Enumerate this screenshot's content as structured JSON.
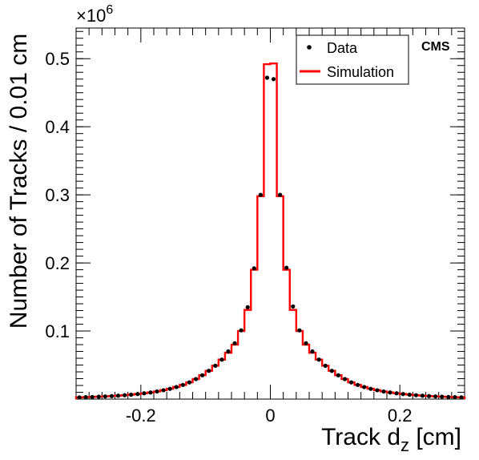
{
  "chart_data": {
    "type": "line",
    "xlabel_main": "Track d",
    "xlabel_sub": "z",
    "xlabel_unit": " [cm]",
    "ylabel": "Number of Tracks / 0.01 cm",
    "y_multiplier_base": "×10",
    "y_multiplier_exp": "6",
    "xlim": [
      -0.3,
      0.3
    ],
    "ylim": [
      0,
      0.545
    ],
    "x_ticks": [
      -0.2,
      0,
      0.2
    ],
    "x_tick_labels": [
      "-0.2",
      "0",
      "0.2"
    ],
    "y_ticks": [
      0.1,
      0.2,
      0.3,
      0.4,
      0.5
    ],
    "y_tick_labels": [
      "0.1",
      "0.2",
      "0.3",
      "0.4",
      "0.5"
    ],
    "legend_position": "top-right",
    "annotation": "CMS",
    "colors": {
      "data": "#000000",
      "simulation": "#ff0000"
    },
    "series": [
      {
        "name": "Data",
        "kind": "points",
        "x": [
          -0.295,
          -0.285,
          -0.275,
          -0.265,
          -0.255,
          -0.245,
          -0.235,
          -0.225,
          -0.215,
          -0.205,
          -0.195,
          -0.185,
          -0.175,
          -0.165,
          -0.155,
          -0.145,
          -0.135,
          -0.125,
          -0.115,
          -0.105,
          -0.095,
          -0.085,
          -0.075,
          -0.065,
          -0.055,
          -0.045,
          -0.035,
          -0.025,
          -0.015,
          -0.005,
          0.005,
          0.015,
          0.025,
          0.035,
          0.045,
          0.055,
          0.065,
          0.075,
          0.085,
          0.095,
          0.105,
          0.115,
          0.125,
          0.135,
          0.145,
          0.155,
          0.165,
          0.175,
          0.185,
          0.195,
          0.205,
          0.215,
          0.225,
          0.235,
          0.245,
          0.255,
          0.265,
          0.275,
          0.285,
          0.295
        ],
        "y": [
          0.0025,
          0.0028,
          0.0031,
          0.0035,
          0.0039,
          0.0044,
          0.005,
          0.0057,
          0.0065,
          0.0074,
          0.0085,
          0.0097,
          0.0112,
          0.013,
          0.0151,
          0.0177,
          0.0208,
          0.0246,
          0.0294,
          0.035,
          0.0415,
          0.049,
          0.058,
          0.07,
          0.082,
          0.101,
          0.135,
          0.192,
          0.3,
          0.472,
          0.47,
          0.3,
          0.193,
          0.136,
          0.101,
          0.082,
          0.07,
          0.058,
          0.049,
          0.0415,
          0.035,
          0.0294,
          0.0246,
          0.0208,
          0.0177,
          0.0151,
          0.013,
          0.0112,
          0.0097,
          0.0085,
          0.0074,
          0.0065,
          0.0057,
          0.005,
          0.0044,
          0.0039,
          0.0035,
          0.0031,
          0.0028,
          0.0025
        ]
      },
      {
        "name": "Simulation",
        "kind": "histogram",
        "bin_edges": [
          -0.3,
          -0.29,
          -0.28,
          -0.27,
          -0.26,
          -0.25,
          -0.24,
          -0.23,
          -0.22,
          -0.21,
          -0.2,
          -0.19,
          -0.18,
          -0.17,
          -0.16,
          -0.15,
          -0.14,
          -0.13,
          -0.12,
          -0.11,
          -0.1,
          -0.09,
          -0.08,
          -0.07,
          -0.06,
          -0.05,
          -0.04,
          -0.03,
          -0.02,
          -0.01,
          0,
          0.01,
          0.02,
          0.03,
          0.04,
          0.05,
          0.06,
          0.07,
          0.08,
          0.09,
          0.1,
          0.11,
          0.12,
          0.13,
          0.14,
          0.15,
          0.16,
          0.17,
          0.18,
          0.19,
          0.2,
          0.21,
          0.22,
          0.23,
          0.24,
          0.25,
          0.26,
          0.27,
          0.28,
          0.29,
          0.3
        ],
        "values": [
          0.0026,
          0.0029,
          0.0032,
          0.0036,
          0.004,
          0.0045,
          0.0051,
          0.0058,
          0.0066,
          0.0075,
          0.0086,
          0.0098,
          0.0113,
          0.0131,
          0.0152,
          0.0178,
          0.0209,
          0.0247,
          0.0295,
          0.0351,
          0.0416,
          0.0491,
          0.058,
          0.068,
          0.08,
          0.1,
          0.131,
          0.19,
          0.298,
          0.492,
          0.493,
          0.298,
          0.19,
          0.131,
          0.1,
          0.08,
          0.068,
          0.058,
          0.0491,
          0.0416,
          0.0351,
          0.0295,
          0.0247,
          0.0209,
          0.0178,
          0.0152,
          0.0131,
          0.0113,
          0.0098,
          0.0086,
          0.0075,
          0.0066,
          0.0058,
          0.0051,
          0.0045,
          0.004,
          0.0036,
          0.0032,
          0.0029,
          0.0026
        ]
      }
    ]
  }
}
